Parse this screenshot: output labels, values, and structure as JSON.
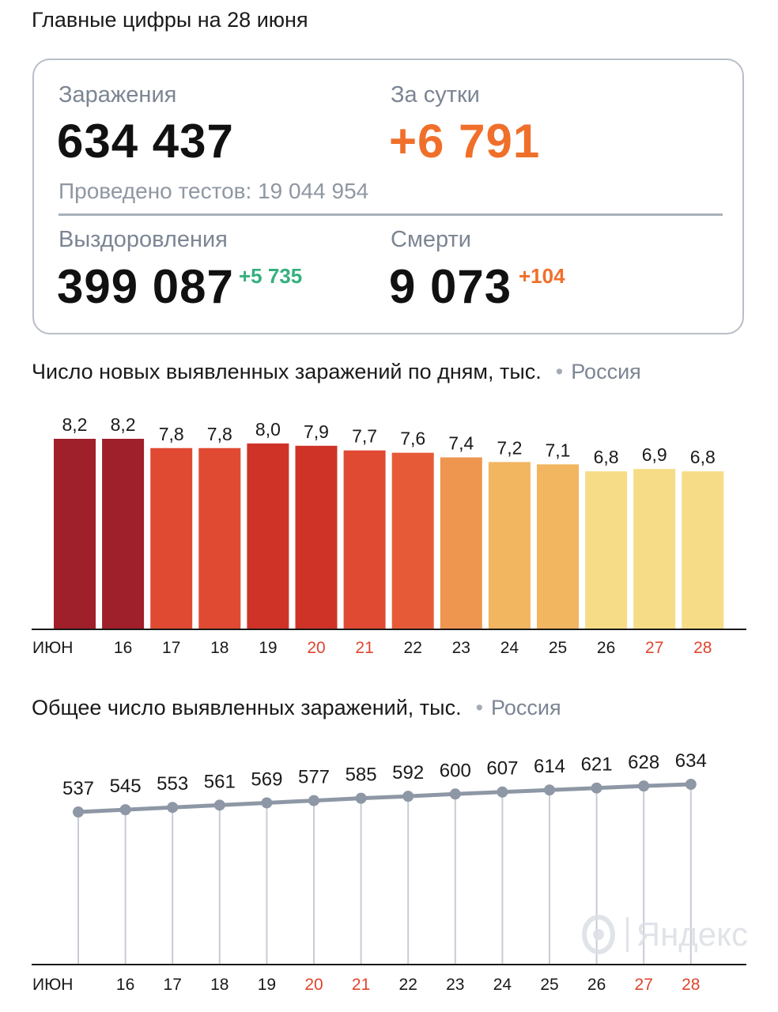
{
  "header": {
    "title": "Главные цифры на 28 июня"
  },
  "summary": {
    "infections_label": "Заражения",
    "infections_value": "634 437",
    "daily_label": "За сутки",
    "daily_value": "+6 791",
    "tests_text": "Проведено тестов: 19 044 954",
    "recoveries_label": "Выздоровления",
    "recoveries_value": "399 087",
    "recoveries_delta": "+5 735",
    "deaths_label": "Смерти",
    "deaths_value": "9 073",
    "deaths_delta": "+104"
  },
  "colors": {
    "orange": "#f06f2a",
    "green": "#35b07e",
    "weekend_red": "#e0452f",
    "line": "#8e97a5"
  },
  "daily_chart": {
    "title": "Число новых выявленных заражений по дням, тыс.",
    "dot": "•",
    "region": "Россия"
  },
  "total_chart": {
    "title": "Общее число выявленных заражений, тыс.",
    "dot": "•",
    "region": "Россия"
  },
  "watermark": {
    "text": "Яндекс",
    "icon": "yandex-logo-icon"
  },
  "chart_data": [
    {
      "type": "bar",
      "title": "Число новых выявленных заражений по дням, тыс.",
      "categories": [
        "ИЮН",
        "16",
        "17",
        "18",
        "19",
        "20",
        "21",
        "22",
        "23",
        "24",
        "25",
        "26",
        "27",
        "28"
      ],
      "weekend": [
        false,
        false,
        false,
        false,
        false,
        true,
        true,
        false,
        false,
        false,
        false,
        false,
        true,
        true
      ],
      "values": [
        8.2,
        8.2,
        7.8,
        7.8,
        8.0,
        7.9,
        7.7,
        7.6,
        7.4,
        7.2,
        7.1,
        6.8,
        6.9,
        6.8
      ],
      "value_labels": [
        "8,2",
        "8,2",
        "7,8",
        "7,8",
        "8,0",
        "7,9",
        "7,7",
        "7,6",
        "7,4",
        "7,2",
        "7,1",
        "6,8",
        "6,9",
        "6,8"
      ],
      "bar_colors": [
        "#9f1f2b",
        "#9f1f2b",
        "#e04a33",
        "#e04a33",
        "#cf3328",
        "#cf3328",
        "#e04a33",
        "#e75a38",
        "#ee9550",
        "#f2b560",
        "#f2b560",
        "#f6dc86",
        "#f6dc86",
        "#f6dc86"
      ],
      "legend": "Россия"
    },
    {
      "type": "line",
      "title": "Общее число выявленных заражений, тыс.",
      "categories": [
        "ИЮН",
        "16",
        "17",
        "18",
        "19",
        "20",
        "21",
        "22",
        "23",
        "24",
        "25",
        "26",
        "27",
        "28"
      ],
      "weekend": [
        false,
        false,
        false,
        false,
        false,
        true,
        true,
        false,
        false,
        false,
        false,
        false,
        true,
        true
      ],
      "values": [
        537,
        545,
        553,
        561,
        569,
        577,
        585,
        592,
        600,
        607,
        614,
        621,
        628,
        634
      ],
      "value_labels": [
        "537",
        "545",
        "553",
        "561",
        "569",
        "577",
        "585",
        "592",
        "600",
        "607",
        "614",
        "621",
        "628",
        "634"
      ],
      "legend": "Россия"
    }
  ]
}
